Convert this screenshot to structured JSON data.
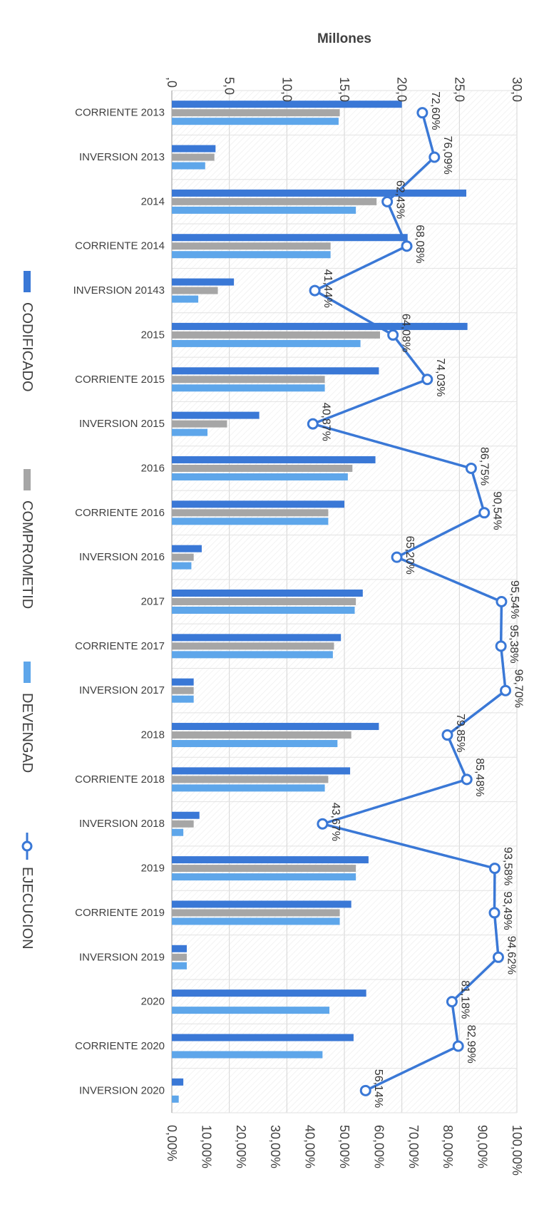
{
  "chart_data": {
    "type": "bar",
    "orientation": "horizontal",
    "top_axis_title": "Millones",
    "top_axis": {
      "min": 0,
      "max": 30,
      "step": 5,
      "tick_labels": [
        ",0",
        "5,0",
        "10,0",
        "15,0",
        "20,0",
        "25,0",
        "30,0"
      ]
    },
    "bottom_axis": {
      "min": 0,
      "max": 100,
      "step": 10,
      "tick_labels": [
        "0,00%",
        "10,00%",
        "20,00%",
        "30,00%",
        "40,00%",
        "50,00%",
        "60,00%",
        "70,00%",
        "80,00%",
        "90,00%",
        "100,00%"
      ]
    },
    "grid": true,
    "legend_position": "left",
    "categories": [
      "CORRIENTE 2013",
      "INVERSION 2013",
      "2014",
      "CORRIENTE 2014",
      "INVERSION 20143",
      "2015",
      "CORRIENTE 2015",
      "INVERSION 2015",
      "2016",
      "CORRIENTE 2016",
      "INVERSION 2016",
      "2017",
      "CORRIENTE 2017",
      "INVERSION 2017",
      "2018",
      "CORRIENTE 2018",
      "INVERSION 2018",
      "2019",
      "CORRIENTE 2019",
      "INVERSION 2019",
      "2020",
      "CORRIENTE 2020",
      "INVERSION 2020"
    ],
    "series": [
      {
        "name": "CODIFICADO",
        "kind": "bar",
        "axis": "top",
        "color": "#3a78d6",
        "values": [
          20.0,
          3.8,
          25.6,
          20.5,
          5.4,
          25.7,
          18.0,
          7.6,
          17.7,
          15.0,
          2.6,
          16.6,
          14.7,
          1.9,
          18.0,
          15.5,
          2.4,
          17.1,
          15.6,
          1.3,
          16.9,
          15.8,
          1.0
        ]
      },
      {
        "name": "COMPROMETID",
        "kind": "bar",
        "axis": "top",
        "color": "#a6a6a6",
        "values": [
          14.6,
          3.7,
          17.8,
          13.8,
          4.0,
          18.1,
          13.3,
          4.8,
          15.7,
          13.6,
          1.9,
          16.0,
          14.1,
          1.9,
          15.6,
          13.6,
          1.9,
          16.0,
          14.6,
          1.3,
          0,
          0,
          0
        ]
      },
      {
        "name": "DEVENGAD",
        "kind": "bar",
        "axis": "top",
        "color": "#5ea6ea",
        "values": [
          14.5,
          2.9,
          16.0,
          13.8,
          2.3,
          16.4,
          13.3,
          3.1,
          15.3,
          13.6,
          1.7,
          15.9,
          14.0,
          1.9,
          14.4,
          13.3,
          1.0,
          16.0,
          14.6,
          1.3,
          13.7,
          13.1,
          0.6
        ]
      },
      {
        "name": "EJECUCION",
        "kind": "line",
        "axis": "bottom",
        "color": "#3a78d6",
        "values": [
          72.6,
          76.09,
          62.43,
          68.08,
          41.44,
          64.08,
          74.03,
          40.87,
          86.75,
          90.54,
          65.2,
          95.54,
          95.38,
          96.7,
          79.85,
          85.48,
          43.67,
          93.58,
          93.49,
          94.62,
          81.18,
          82.99,
          56.14
        ],
        "labels": [
          "72,60%",
          "76,09%",
          "62,43%",
          "68,08%",
          "41,44%",
          "64,08%",
          "74,03%",
          "40,87%",
          "86,75%",
          "90,54%",
          "65,20%",
          "95,54%",
          "95,38%",
          "96,70%",
          "79,85%",
          "85,48%",
          "43,67%",
          "93,58%",
          "93,49%",
          "94,62%",
          "81,18%",
          "82,99%",
          "56,14%"
        ]
      }
    ]
  }
}
